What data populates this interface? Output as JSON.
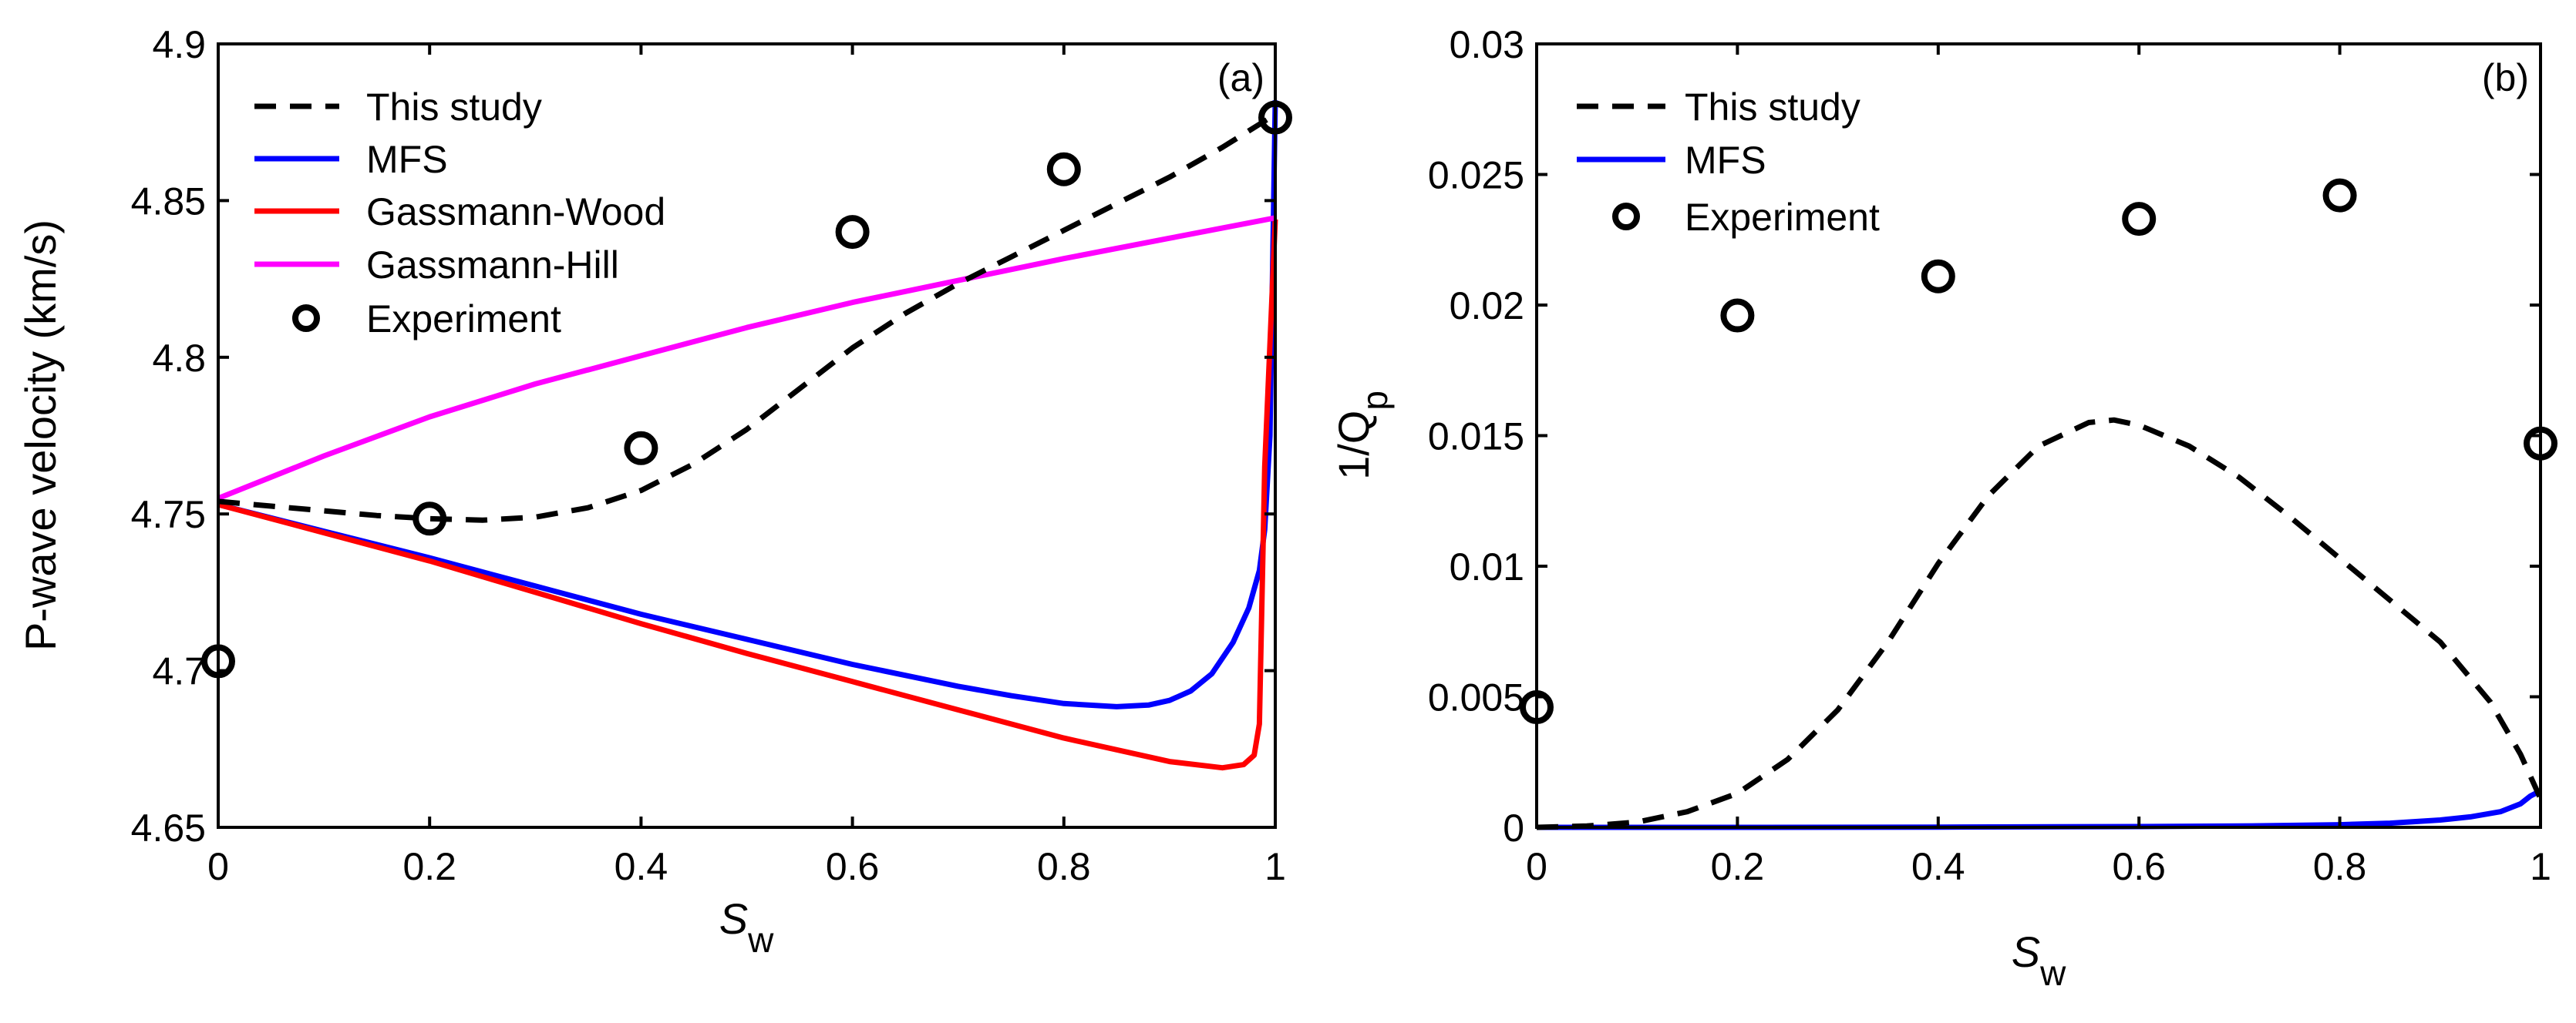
{
  "chart_data": [
    {
      "type": "line",
      "panel_label": "(a)",
      "xlabel": {
        "main": "S",
        "sub": "w"
      },
      "ylabel": "P-wave velocity (km/s)",
      "xlim": [
        0,
        1
      ],
      "ylim": [
        4.65,
        4.9
      ],
      "xticks": [
        0,
        0.2,
        0.4,
        0.6,
        0.8,
        1
      ],
      "xtick_labels": [
        "0",
        "0.2",
        "0.4",
        "0.6",
        "0.8",
        "1"
      ],
      "yticks": [
        4.65,
        4.7,
        4.75,
        4.8,
        4.85,
        4.9
      ],
      "ytick_labels": [
        "4.65",
        "4.7",
        "4.75",
        "4.8",
        "4.85",
        "4.9"
      ],
      "legend_position": "top-left",
      "series": [
        {
          "name": "This study",
          "style": "dashed",
          "color": "#000000",
          "x": [
            0,
            0.05,
            0.1,
            0.15,
            0.2,
            0.25,
            0.3,
            0.35,
            0.4,
            0.45,
            0.5,
            0.55,
            0.6,
            0.65,
            0.7,
            0.75,
            0.8,
            0.85,
            0.9,
            0.95,
            1.0
          ],
          "y": [
            4.754,
            4.7525,
            4.751,
            4.7495,
            4.7485,
            4.748,
            4.749,
            4.752,
            4.7575,
            4.766,
            4.777,
            4.79,
            4.803,
            4.814,
            4.8235,
            4.832,
            4.8405,
            4.849,
            4.8575,
            4.867,
            4.8775
          ]
        },
        {
          "name": "MFS",
          "style": "solid",
          "color": "#0000ff",
          "x": [
            0,
            0.1,
            0.2,
            0.3,
            0.4,
            0.5,
            0.6,
            0.7,
            0.75,
            0.8,
            0.85,
            0.88,
            0.9,
            0.92,
            0.94,
            0.96,
            0.975,
            0.985,
            0.99,
            0.995,
            1.0
          ],
          "y": [
            4.753,
            4.7445,
            4.736,
            4.727,
            4.718,
            4.71,
            4.702,
            4.695,
            4.692,
            4.6895,
            4.6885,
            4.689,
            4.6905,
            4.6935,
            4.699,
            4.709,
            4.72,
            4.732,
            4.745,
            4.775,
            4.882
          ]
        },
        {
          "name": "Gassmann-Wood",
          "style": "solid",
          "color": "#ff0000",
          "x": [
            0,
            0.1,
            0.2,
            0.3,
            0.4,
            0.5,
            0.6,
            0.7,
            0.8,
            0.9,
            0.95,
            0.97,
            0.98,
            0.985,
            0.99,
            1.0
          ],
          "y": [
            4.753,
            4.744,
            4.735,
            4.725,
            4.715,
            4.7055,
            4.6965,
            4.6875,
            4.6785,
            4.671,
            4.669,
            4.67,
            4.673,
            4.683,
            4.765,
            4.844
          ]
        },
        {
          "name": "Gassmann-Hill",
          "style": "solid",
          "color": "#ff00ff",
          "x": [
            0,
            0.1,
            0.2,
            0.3,
            0.4,
            0.5,
            0.6,
            0.7,
            0.8,
            0.9,
            1.0
          ],
          "y": [
            4.755,
            4.7685,
            4.781,
            4.7915,
            4.8005,
            4.8095,
            4.8175,
            4.8245,
            4.8315,
            4.838,
            4.8445
          ]
        },
        {
          "name": "Experiment",
          "style": "markers",
          "color": "#000000",
          "x": [
            0,
            0.2,
            0.4,
            0.6,
            0.8,
            1.0
          ],
          "y": [
            4.703,
            4.7485,
            4.771,
            4.84,
            4.86,
            4.8765
          ]
        }
      ]
    },
    {
      "type": "line",
      "panel_label": "(b)",
      "xlabel": {
        "main": "S",
        "sub": "w"
      },
      "ylabel": {
        "main": "1/Q",
        "sub": "p"
      },
      "xlim": [
        0,
        1
      ],
      "ylim": [
        0,
        0.03
      ],
      "xticks": [
        0,
        0.2,
        0.4,
        0.6,
        0.8,
        1
      ],
      "xtick_labels": [
        "0",
        "0.2",
        "0.4",
        "0.6",
        "0.8",
        "1"
      ],
      "yticks": [
        0,
        0.005,
        0.01,
        0.015,
        0.02,
        0.025,
        0.03
      ],
      "ytick_labels": [
        "0",
        "0.005",
        "0.01",
        "0.015",
        "0.02",
        "0.025",
        "0.03"
      ],
      "legend_position": "top-left",
      "series": [
        {
          "name": "This study",
          "style": "dashed",
          "color": "#000000",
          "x": [
            0.0,
            0.05,
            0.1,
            0.15,
            0.2,
            0.25,
            0.3,
            0.35,
            0.4,
            0.45,
            0.5,
            0.55,
            0.575,
            0.6,
            0.65,
            0.7,
            0.75,
            0.8,
            0.85,
            0.9,
            0.95,
            0.98,
            1.0
          ],
          "y": [
            0.0,
            5e-05,
            0.0002,
            0.0006,
            0.0013,
            0.0026,
            0.0045,
            0.0071,
            0.0101,
            0.0127,
            0.0146,
            0.0155,
            0.0156,
            0.0154,
            0.0146,
            0.0134,
            0.0119,
            0.0103,
            0.0087,
            0.0071,
            0.0048,
            0.0028,
            0.0011
          ]
        },
        {
          "name": "MFS",
          "style": "solid",
          "color": "#0000ff",
          "x": [
            0,
            0.2,
            0.4,
            0.6,
            0.7,
            0.8,
            0.85,
            0.9,
            0.93,
            0.96,
            0.98,
            0.99,
            1.0
          ],
          "y": [
            0,
            0,
            1e-05,
            3e-05,
            5e-05,
            0.0001,
            0.00016,
            0.00028,
            0.0004,
            0.0006,
            0.0009,
            0.0012,
            0.0014
          ]
        },
        {
          "name": "Experiment",
          "style": "markers",
          "color": "#000000",
          "x": [
            0,
            0.2,
            0.4,
            0.6,
            0.8,
            1.0
          ],
          "y": [
            0.0046,
            0.0196,
            0.0211,
            0.0233,
            0.0242,
            0.0147
          ]
        }
      ]
    }
  ]
}
